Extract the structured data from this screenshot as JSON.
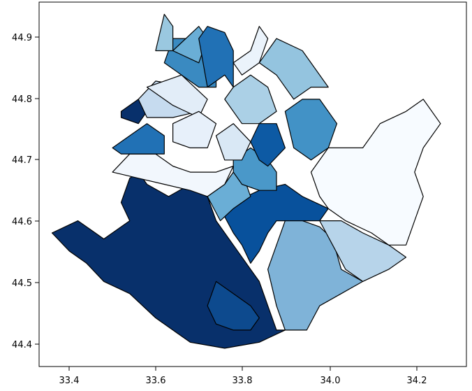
{
  "chart_data": {
    "type": "choropleth",
    "title": "",
    "xlabel": "",
    "ylabel": "",
    "xlim": [
      33.35,
      34.34
    ],
    "ylim": [
      44.36,
      44.96
    ],
    "x_ticks": [
      "33.4",
      "33.6",
      "33.8",
      "34.0",
      "34.2"
    ],
    "y_ticks": [
      "44.4",
      "44.5",
      "44.6",
      "44.7",
      "44.8",
      "44.9"
    ],
    "colormap": "Blues",
    "edge_color": "#000000",
    "regions": [
      {
        "id": "south-west",
        "fill": "#08306b",
        "outline": [
          [
            33.38,
            44.58
          ],
          [
            33.44,
            44.6
          ],
          [
            33.5,
            44.57
          ],
          [
            33.54,
            44.59
          ],
          [
            33.56,
            44.6
          ],
          [
            33.54,
            44.63
          ],
          [
            33.56,
            44.67
          ],
          [
            33.58,
            44.68
          ],
          [
            33.6,
            44.66
          ],
          [
            33.65,
            44.64
          ],
          [
            33.7,
            44.66
          ],
          [
            33.74,
            44.64
          ],
          [
            33.76,
            44.6
          ],
          [
            33.8,
            44.56
          ],
          [
            33.84,
            44.52
          ],
          [
            33.86,
            44.5
          ],
          [
            33.88,
            44.46
          ],
          [
            33.9,
            44.42
          ],
          [
            33.92,
            44.42
          ],
          [
            33.86,
            44.4
          ],
          [
            33.78,
            44.39
          ],
          [
            33.7,
            44.4
          ],
          [
            33.66,
            44.42
          ],
          [
            33.62,
            44.44
          ],
          [
            33.56,
            44.48
          ],
          [
            33.5,
            44.5
          ],
          [
            33.46,
            44.53
          ],
          [
            33.42,
            44.55
          ]
        ]
      },
      {
        "id": "south-inset",
        "fill": "#0d4a8e",
        "outline": [
          [
            33.76,
            44.5
          ],
          [
            33.8,
            44.48
          ],
          [
            33.84,
            44.46
          ],
          [
            33.86,
            44.44
          ],
          [
            33.84,
            44.42
          ],
          [
            33.8,
            44.42
          ],
          [
            33.76,
            44.43
          ],
          [
            33.74,
            44.46
          ]
        ]
      },
      {
        "id": "center-south",
        "fill": "#08519c",
        "outline": [
          [
            33.77,
            44.62
          ],
          [
            33.8,
            44.63
          ],
          [
            33.86,
            44.65
          ],
          [
            33.92,
            44.66
          ],
          [
            33.96,
            44.64
          ],
          [
            34.02,
            44.62
          ],
          [
            34.0,
            44.6
          ],
          [
            33.94,
            44.6
          ],
          [
            33.9,
            44.6
          ],
          [
            33.88,
            44.58
          ],
          [
            33.86,
            44.55
          ],
          [
            33.84,
            44.53
          ],
          [
            33.82,
            44.56
          ],
          [
            33.8,
            44.58
          ]
        ]
      },
      {
        "id": "south-east-mid",
        "fill": "#7fb3d8",
        "outline": [
          [
            33.88,
            44.52
          ],
          [
            33.9,
            44.56
          ],
          [
            33.92,
            44.6
          ],
          [
            33.96,
            44.6
          ],
          [
            34.0,
            44.59
          ],
          [
            34.03,
            44.57
          ],
          [
            34.05,
            44.52
          ],
          [
            34.1,
            44.5
          ],
          [
            34.05,
            44.48
          ],
          [
            34.0,
            44.46
          ],
          [
            33.97,
            44.42
          ],
          [
            33.92,
            44.42
          ],
          [
            33.9,
            44.46
          ]
        ]
      },
      {
        "id": "south-east",
        "fill": "#b7d4ea",
        "outline": [
          [
            34.0,
            44.6
          ],
          [
            34.05,
            44.6
          ],
          [
            34.1,
            44.58
          ],
          [
            34.16,
            44.56
          ],
          [
            34.2,
            44.54
          ],
          [
            34.16,
            44.52
          ],
          [
            34.1,
            44.5
          ],
          [
            34.06,
            44.52
          ],
          [
            34.03,
            44.56
          ]
        ]
      },
      {
        "id": "east",
        "fill": "#f7fbff",
        "outline": [
          [
            33.98,
            44.68
          ],
          [
            34.02,
            44.72
          ],
          [
            34.06,
            44.72
          ],
          [
            34.1,
            44.72
          ],
          [
            34.14,
            44.76
          ],
          [
            34.2,
            44.78
          ],
          [
            34.24,
            44.8
          ],
          [
            34.28,
            44.76
          ],
          [
            34.24,
            44.72
          ],
          [
            34.22,
            44.68
          ],
          [
            34.24,
            44.64
          ],
          [
            34.22,
            44.6
          ],
          [
            34.2,
            44.56
          ],
          [
            34.16,
            44.56
          ],
          [
            34.12,
            44.58
          ],
          [
            34.06,
            44.6
          ],
          [
            34.02,
            44.62
          ],
          [
            34.0,
            44.64
          ]
        ]
      },
      {
        "id": "center",
        "fill": "#6aaed6",
        "outline": [
          [
            33.74,
            44.64
          ],
          [
            33.78,
            44.66
          ],
          [
            33.8,
            44.68
          ],
          [
            33.82,
            44.68
          ],
          [
            33.84,
            44.64
          ],
          [
            33.8,
            44.62
          ],
          [
            33.77,
            44.6
          ]
        ]
      },
      {
        "id": "center-north",
        "fill": "#4a98c9",
        "outline": [
          [
            33.8,
            44.7
          ],
          [
            33.84,
            44.72
          ],
          [
            33.88,
            44.7
          ],
          [
            33.9,
            44.68
          ],
          [
            33.9,
            44.65
          ],
          [
            33.86,
            44.65
          ],
          [
            33.82,
            44.66
          ],
          [
            33.8,
            44.68
          ]
        ]
      },
      {
        "id": "west-lowland",
        "fill": "#f2f7fd",
        "outline": [
          [
            33.52,
            44.68
          ],
          [
            33.56,
            44.71
          ],
          [
            33.62,
            44.71
          ],
          [
            33.66,
            44.69
          ],
          [
            33.7,
            44.68
          ],
          [
            33.76,
            44.68
          ],
          [
            33.8,
            44.69
          ],
          [
            33.78,
            44.66
          ],
          [
            33.74,
            44.64
          ],
          [
            33.7,
            44.65
          ],
          [
            33.64,
            44.66
          ],
          [
            33.58,
            44.67
          ]
        ]
      },
      {
        "id": "west-coast",
        "fill": "#2171b5",
        "outline": [
          [
            33.52,
            44.72
          ],
          [
            33.56,
            44.74
          ],
          [
            33.6,
            44.76
          ],
          [
            33.64,
            44.74
          ],
          [
            33.64,
            44.71
          ],
          [
            33.58,
            44.71
          ],
          [
            33.54,
            44.71
          ]
        ]
      },
      {
        "id": "north-west",
        "fill": "#08306b",
        "outline": [
          [
            33.54,
            44.78
          ],
          [
            33.58,
            44.8
          ],
          [
            33.6,
            44.78
          ],
          [
            33.58,
            44.76
          ],
          [
            33.54,
            44.77
          ]
        ]
      },
      {
        "id": "north-west-b",
        "fill": "#c6dbef",
        "outline": [
          [
            33.58,
            44.8
          ],
          [
            33.62,
            44.83
          ],
          [
            33.7,
            44.82
          ],
          [
            33.72,
            44.78
          ],
          [
            33.66,
            44.77
          ],
          [
            33.6,
            44.77
          ]
        ]
      },
      {
        "id": "north-west-c",
        "fill": "#e2edf8",
        "outline": [
          [
            33.6,
            44.82
          ],
          [
            33.68,
            44.84
          ],
          [
            33.74,
            44.8
          ],
          [
            33.72,
            44.77
          ],
          [
            33.66,
            44.79
          ]
        ]
      },
      {
        "id": "north-center",
        "fill": "#3a8ac1",
        "outline": [
          [
            33.64,
            44.86
          ],
          [
            33.66,
            44.9
          ],
          [
            33.72,
            44.9
          ],
          [
            33.76,
            44.86
          ],
          [
            33.76,
            44.82
          ],
          [
            33.72,
            44.82
          ],
          [
            33.68,
            44.84
          ]
        ]
      },
      {
        "id": "north-1",
        "fill": "#9ac8e0",
        "outline": [
          [
            33.62,
            44.88
          ],
          [
            33.64,
            44.94
          ],
          [
            33.66,
            44.92
          ],
          [
            33.66,
            44.88
          ]
        ]
      },
      {
        "id": "north-2",
        "fill": "#6aaed6",
        "outline": [
          [
            33.66,
            44.88
          ],
          [
            33.72,
            44.92
          ],
          [
            33.74,
            44.9
          ],
          [
            33.72,
            44.86
          ]
        ]
      },
      {
        "id": "north-3",
        "fill": "#2171b5",
        "outline": [
          [
            33.74,
            44.82
          ],
          [
            33.78,
            44.84
          ],
          [
            33.8,
            44.82
          ],
          [
            33.8,
            44.88
          ],
          [
            33.78,
            44.91
          ],
          [
            33.74,
            44.92
          ],
          [
            33.72,
            44.9
          ]
        ]
      },
      {
        "id": "north-4",
        "fill": "#ebf3fb",
        "outline": [
          [
            33.8,
            44.86
          ],
          [
            33.84,
            44.88
          ],
          [
            33.86,
            44.92
          ],
          [
            33.88,
            44.9
          ],
          [
            33.86,
            44.86
          ],
          [
            33.82,
            44.84
          ]
        ]
      },
      {
        "id": "north-5",
        "fill": "#94c4df",
        "outline": [
          [
            33.86,
            44.86
          ],
          [
            33.9,
            44.9
          ],
          [
            33.96,
            44.88
          ],
          [
            34.02,
            44.82
          ],
          [
            33.98,
            44.82
          ],
          [
            33.94,
            44.8
          ],
          [
            33.9,
            44.84
          ]
        ]
      },
      {
        "id": "north-6",
        "fill": "#abd0e6",
        "outline": [
          [
            33.8,
            44.82
          ],
          [
            33.84,
            44.84
          ],
          [
            33.88,
            44.82
          ],
          [
            33.9,
            44.78
          ],
          [
            33.86,
            44.76
          ],
          [
            33.82,
            44.76
          ],
          [
            33.78,
            44.8
          ]
        ]
      },
      {
        "id": "center-east",
        "fill": "#4292c6",
        "outline": [
          [
            33.92,
            44.78
          ],
          [
            33.96,
            44.8
          ],
          [
            34.0,
            44.8
          ],
          [
            34.04,
            44.76
          ],
          [
            34.02,
            44.72
          ],
          [
            33.98,
            44.7
          ],
          [
            33.94,
            44.72
          ]
        ]
      },
      {
        "id": "center-mid",
        "fill": "#0d5aa4",
        "outline": [
          [
            33.86,
            44.76
          ],
          [
            33.9,
            44.76
          ],
          [
            33.92,
            44.72
          ],
          [
            33.88,
            44.69
          ],
          [
            33.86,
            44.7
          ],
          [
            33.84,
            44.73
          ]
        ]
      },
      {
        "id": "inner-1",
        "fill": "#d9e8f5",
        "outline": [
          [
            33.76,
            44.74
          ],
          [
            33.8,
            44.76
          ],
          [
            33.84,
            44.73
          ],
          [
            33.82,
            44.7
          ],
          [
            33.78,
            44.7
          ]
        ]
      },
      {
        "id": "inner-2",
        "fill": "#e7f0fa",
        "outline": [
          [
            33.66,
            44.76
          ],
          [
            33.72,
            44.78
          ],
          [
            33.76,
            44.76
          ],
          [
            33.74,
            44.72
          ],
          [
            33.7,
            44.72
          ],
          [
            33.66,
            44.73
          ]
        ]
      }
    ]
  }
}
